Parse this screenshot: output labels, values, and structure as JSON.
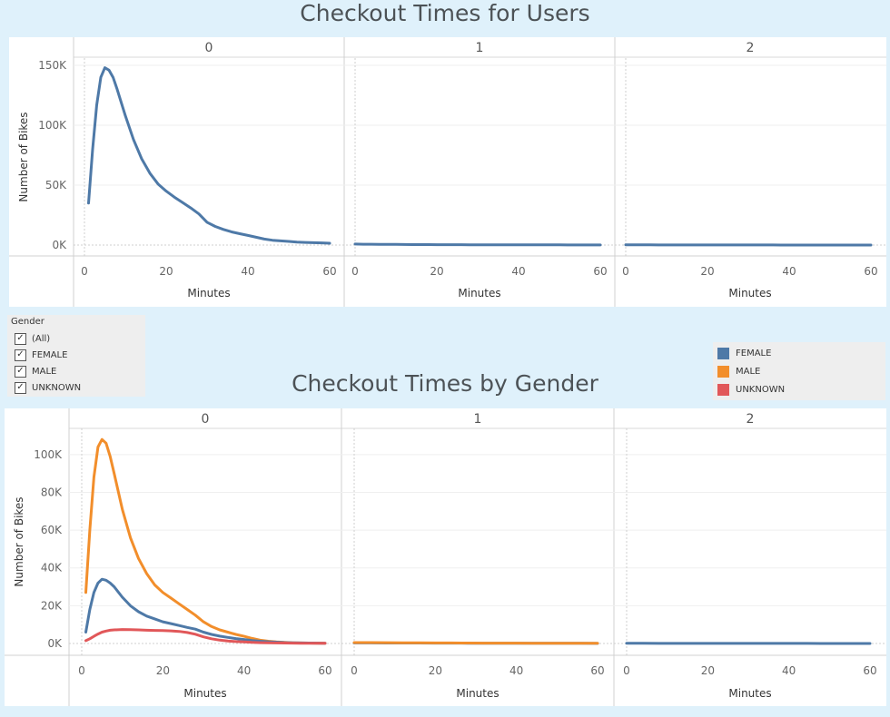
{
  "filter": {
    "title": "Gender",
    "items": [
      {
        "label": "(All)",
        "checked": true
      },
      {
        "label": "FEMALE",
        "checked": true
      },
      {
        "label": "MALE",
        "checked": true
      },
      {
        "label": "UNKNOWN",
        "checked": true
      }
    ],
    "check_glyph": "✓"
  },
  "legend": {
    "items": [
      {
        "label": "FEMALE",
        "color": "#4e79a7"
      },
      {
        "label": "MALE",
        "color": "#f28e2b"
      },
      {
        "label": "UNKNOWN",
        "color": "#e15759"
      }
    ]
  },
  "chart_data": [
    {
      "type": "line",
      "title": "Checkout Times  for Users",
      "facet_labels": [
        "0",
        "1",
        "2"
      ],
      "xlabel": "Minutes",
      "ylabel": "Number of Bikes",
      "xlim": [
        0,
        60
      ],
      "xticks": [
        0,
        20,
        40,
        60
      ],
      "ylim": [
        0,
        150000
      ],
      "yticks": [
        0,
        50000,
        100000,
        150000
      ],
      "ytick_labels": [
        "0K",
        "50K",
        "100K",
        "150K"
      ],
      "grid": true,
      "panels": [
        {
          "facet": "0",
          "series": [
            {
              "color": "#4e79a7",
              "x": [
                1,
                2,
                3,
                4,
                5,
                6,
                7,
                8,
                10,
                12,
                14,
                16,
                18,
                20,
                22,
                24,
                26,
                28,
                30,
                32,
                34,
                36,
                38,
                40,
                42,
                44,
                46,
                48,
                50,
                52,
                54,
                56,
                58,
                60
              ],
              "y": [
                35000,
                80000,
                117000,
                140000,
                148000,
                146000,
                140000,
                130000,
                108000,
                88000,
                72000,
                60000,
                51000,
                45000,
                40000,
                35500,
                31000,
                26000,
                19000,
                15500,
                13000,
                11000,
                9500,
                8000,
                6500,
                5000,
                4000,
                3500,
                3000,
                2500,
                2200,
                2000,
                1800,
                1500
              ]
            }
          ]
        },
        {
          "facet": "1",
          "series": [
            {
              "color": "#4e79a7",
              "x": [
                0,
                2,
                4,
                6,
                8,
                10,
                12,
                14,
                16,
                18,
                20,
                22,
                24,
                26,
                28,
                30,
                32,
                34,
                36,
                38,
                40,
                42,
                44,
                46,
                48,
                50,
                52,
                54,
                56,
                58,
                60
              ],
              "y": [
                800,
                700,
                650,
                600,
                550,
                500,
                450,
                400,
                380,
                360,
                340,
                320,
                300,
                280,
                260,
                240,
                220,
                200,
                190,
                180,
                170,
                160,
                150,
                140,
                130,
                120,
                110,
                100,
                90,
                80,
                70
              ]
            }
          ]
        },
        {
          "facet": "2",
          "series": [
            {
              "color": "#4e79a7",
              "x": [
                0,
                2,
                4,
                6,
                8,
                10,
                12,
                14,
                16,
                18,
                20,
                22,
                24,
                26,
                28,
                30,
                32,
                34,
                36,
                38,
                40,
                42,
                44,
                46,
                48,
                50,
                52,
                54,
                56,
                58,
                60
              ],
              "y": [
                150,
                140,
                130,
                120,
                110,
                100,
                95,
                90,
                85,
                80,
                75,
                70,
                65,
                60,
                55,
                50,
                45,
                40,
                40,
                35,
                35,
                30,
                30,
                25,
                25,
                20,
                20,
                15,
                15,
                10,
                10
              ]
            }
          ]
        }
      ]
    },
    {
      "type": "line",
      "title": "Checkout Times by Gender",
      "facet_labels": [
        "0",
        "1",
        "2"
      ],
      "xlabel": "Minutes",
      "ylabel": "Number of Bikes",
      "xlim": [
        0,
        60
      ],
      "xticks": [
        0,
        20,
        40,
        60
      ],
      "ylim": [
        0,
        110000
      ],
      "yticks": [
        0,
        20000,
        40000,
        60000,
        80000,
        100000
      ],
      "ytick_labels": [
        "0K",
        "20K",
        "40K",
        "60K",
        "80K",
        "100K"
      ],
      "grid": true,
      "panels": [
        {
          "facet": "0",
          "series": [
            {
              "name": "MALE",
              "color": "#f28e2b",
              "x": [
                1,
                2,
                3,
                4,
                5,
                6,
                7,
                8,
                10,
                12,
                14,
                16,
                18,
                20,
                22,
                24,
                26,
                28,
                30,
                32,
                34,
                36,
                38,
                40,
                42,
                44,
                46,
                48,
                50,
                52,
                54,
                56,
                58,
                60
              ],
              "y": [
                27000,
                60000,
                88000,
                104000,
                108000,
                106000,
                99000,
                90000,
                71000,
                56000,
                45000,
                37000,
                31000,
                27000,
                24000,
                21000,
                18000,
                15000,
                11500,
                9000,
                7200,
                6000,
                4800,
                3800,
                2700,
                1800,
                1200,
                800,
                600,
                400,
                300,
                250,
                200,
                150
              ]
            },
            {
              "name": "FEMALE",
              "color": "#4e79a7",
              "x": [
                1,
                2,
                3,
                4,
                5,
                6,
                7,
                8,
                10,
                12,
                14,
                16,
                18,
                20,
                22,
                24,
                26,
                28,
                30,
                32,
                34,
                36,
                38,
                40,
                42,
                44,
                46,
                48,
                50,
                52,
                54,
                56,
                58,
                60
              ],
              "y": [
                6000,
                18000,
                27000,
                32000,
                34000,
                33500,
                32000,
                30000,
                24500,
                20000,
                16800,
                14500,
                13000,
                11500,
                10500,
                9500,
                8500,
                7600,
                6000,
                4800,
                3900,
                3200,
                2600,
                2100,
                1600,
                1200,
                900,
                700,
                500,
                400,
                300,
                250,
                200,
                150
              ]
            },
            {
              "name": "UNKNOWN",
              "color": "#e15759",
              "x": [
                1,
                2,
                3,
                4,
                5,
                6,
                7,
                8,
                10,
                12,
                14,
                16,
                18,
                20,
                22,
                24,
                26,
                28,
                30,
                32,
                34,
                36,
                38,
                40,
                42,
                44,
                46,
                48,
                50,
                52,
                54,
                56,
                58,
                60
              ],
              "y": [
                1500,
                2500,
                3800,
                5000,
                6000,
                6600,
                7000,
                7200,
                7400,
                7300,
                7200,
                7000,
                6900,
                6800,
                6700,
                6400,
                5800,
                4900,
                3500,
                2500,
                1800,
                1300,
                1000,
                800,
                600,
                450,
                350,
                280,
                220,
                180,
                150,
                120,
                100,
                80
              ]
            }
          ]
        },
        {
          "facet": "1",
          "series": [
            {
              "name": "FEMALE",
              "color": "#4e79a7",
              "x": [
                0,
                4,
                8,
                12,
                16,
                20,
                24,
                28,
                32,
                36,
                40,
                44,
                48,
                52,
                56,
                60
              ],
              "y": [
                300,
                280,
                260,
                240,
                220,
                200,
                180,
                160,
                140,
                130,
                120,
                110,
                100,
                90,
                80,
                70
              ]
            },
            {
              "name": "MALE",
              "color": "#f28e2b",
              "x": [
                0,
                4,
                8,
                12,
                16,
                20,
                24,
                28,
                32,
                36,
                40,
                44,
                48,
                52,
                56,
                60
              ],
              "y": [
                500,
                460,
                420,
                380,
                340,
                300,
                270,
                240,
                210,
                190,
                170,
                150,
                130,
                110,
                95,
                80
              ]
            }
          ]
        },
        {
          "facet": "2",
          "series": [
            {
              "name": "FEMALE",
              "color": "#4e79a7",
              "x": [
                0,
                4,
                8,
                12,
                16,
                20,
                24,
                28,
                32,
                36,
                40,
                44,
                48,
                52,
                56,
                60
              ],
              "y": [
                80,
                75,
                70,
                65,
                60,
                55,
                50,
                45,
                40,
                35,
                30,
                25,
                20,
                18,
                15,
                12
              ]
            }
          ]
        }
      ]
    }
  ]
}
